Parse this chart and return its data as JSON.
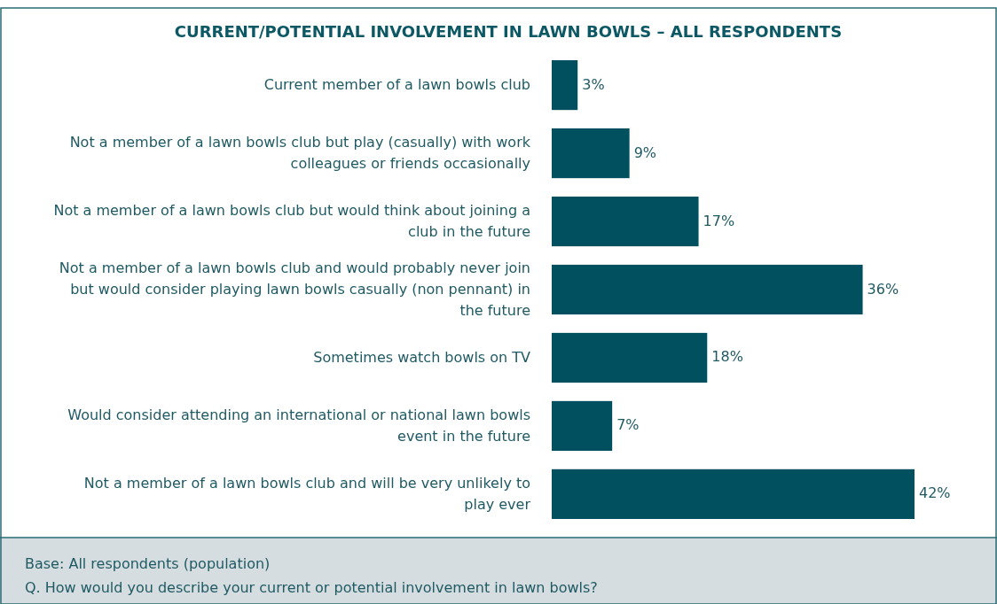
{
  "chart_data": {
    "type": "bar",
    "orientation": "horizontal",
    "title": "CURRENT/POTENTIAL INVOLVEMENT IN LAWN BOWLS – ALL RESPONDENTS",
    "categories": [
      "Current member of a lawn bowls club",
      "Not a member of a lawn bowls club but play (casually) with work colleagues or friends occasionally",
      "Not a member of a lawn bowls club but would think about joining a club in the future",
      "Not a member of a lawn bowls club and would probably never join but would consider playing lawn bowls casually (non pennant) in the future",
      "Sometimes watch bowls on TV",
      "Would consider attending an international or national lawn bowls event in the future",
      "Not a member of a lawn bowls club and will be very unlikely to play ever"
    ],
    "values": [
      3,
      9,
      17,
      36,
      18,
      7,
      42
    ],
    "value_labels": [
      "3%",
      "9%",
      "17%",
      "36%",
      "18%",
      "7%",
      "42%"
    ],
    "color": "#00505f",
    "annotations": [
      "Base: All respondents (population)",
      "Q. How would you describe your current or potential involvement in lawn bowls?"
    ]
  }
}
